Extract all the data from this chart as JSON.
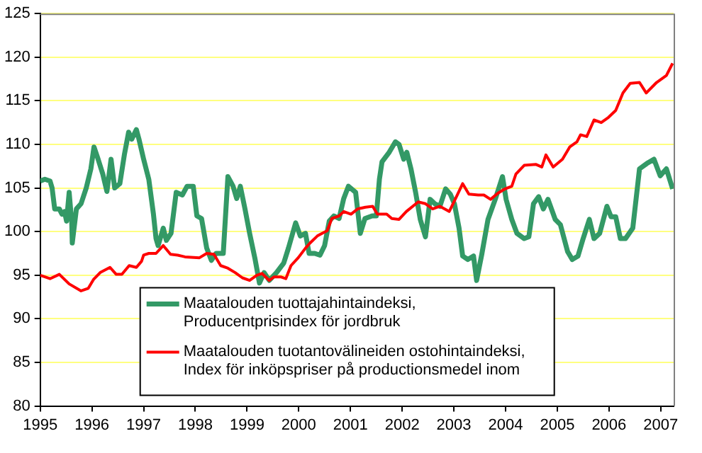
{
  "chart_data": {
    "type": "line",
    "xlim": [
      1995,
      2007.25
    ],
    "xticks": [
      1995,
      1996,
      1997,
      1998,
      1999,
      2000,
      2001,
      2002,
      2003,
      2004,
      2005,
      2006,
      2007
    ],
    "ylim": [
      80,
      125
    ],
    "yticks": [
      80,
      85,
      90,
      95,
      100,
      105,
      110,
      115,
      120,
      125
    ],
    "grid": "y",
    "legend": "bottom",
    "marker": "none",
    "line_style": "solid",
    "series": [
      {
        "name": "Maatalouden tuottajahintaindeksi,  Producentprisindex för jordbruk",
        "color": "#339966",
        "x": [
          1995,
          1995.09,
          1995.19,
          1995.23,
          1995.28,
          1995.37,
          1995.42,
          1995.47,
          1995.51,
          1995.56,
          1995.61,
          1995.62,
          1995.7,
          1995.79,
          1995.89,
          1995.98,
          1996.04,
          1996.12,
          1996.21,
          1996.29,
          1996.37,
          1996.44,
          1996.54,
          1996.63,
          1996.71,
          1996.77,
          1996.86,
          1996.91,
          1997.0,
          1997.1,
          1997.19,
          1997.24,
          1997.28,
          1997.38,
          1997.44,
          1997.53,
          1997.63,
          1997.75,
          1997.84,
          1997.96,
          1998.03,
          1998.12,
          1998.22,
          1998.31,
          1998.4,
          1998.54,
          1998.63,
          1998.73,
          1998.8,
          1998.87,
          1998.96,
          1999.05,
          1999.15,
          1999.24,
          1999.33,
          1999.43,
          1999.57,
          1999.71,
          1999.8,
          1999.94,
          2000.03,
          2000.13,
          2000.2,
          2000.31,
          2000.41,
          2000.5,
          2000.59,
          2000.68,
          2000.78,
          2000.87,
          2000.96,
          2001.1,
          2001.19,
          2001.28,
          2001.42,
          2001.5,
          2001.56,
          2001.61,
          2001.75,
          2001.87,
          2001.94,
          2002.03,
          2002.09,
          2002.17,
          2002.26,
          2002.35,
          2002.45,
          2002.54,
          2002.63,
          2002.73,
          2002.84,
          2002.93,
          2003.01,
          2003.1,
          2003.17,
          2003.27,
          2003.38,
          2003.44,
          2003.54,
          2003.66,
          2003.8,
          2003.94,
          2004.01,
          2004.12,
          2004.22,
          2004.36,
          2004.45,
          2004.54,
          2004.64,
          2004.73,
          2004.82,
          2004.96,
          2005.06,
          2005.2,
          2005.29,
          2005.4,
          2005.5,
          2005.62,
          2005.71,
          2005.82,
          2005.96,
          2006.04,
          2006.13,
          2006.22,
          2006.32,
          2006.46,
          2006.59,
          2006.73,
          2006.87,
          2006.99,
          2007.11,
          2007.23
        ],
        "values": [
          105.8,
          106,
          105.8,
          105,
          102.6,
          102.6,
          102,
          102.3,
          101.2,
          104.5,
          101,
          98.7,
          102.6,
          103.2,
          105,
          107.2,
          109.7,
          108.3,
          106.6,
          104.6,
          108.3,
          105,
          105.5,
          108.9,
          111.4,
          110.6,
          111.7,
          110.6,
          108.3,
          106,
          102,
          99.2,
          98.4,
          100.4,
          99,
          99.8,
          104.5,
          104.2,
          105.2,
          105.2,
          101.8,
          101.5,
          98.1,
          96.7,
          97.5,
          97.5,
          106.3,
          105.2,
          103.8,
          105.2,
          102.6,
          99.8,
          97,
          94.1,
          95.3,
          94.4,
          95.3,
          96.4,
          98.1,
          101,
          99.5,
          99.8,
          97.5,
          97.5,
          97.3,
          98.4,
          101.2,
          101.8,
          101.5,
          103.8,
          105.2,
          104.5,
          99.8,
          101.5,
          101.8,
          101.8,
          106,
          108,
          109.1,
          110.3,
          110,
          108.3,
          109.1,
          107.2,
          104.5,
          101.4,
          99.4,
          103.7,
          103.2,
          102.9,
          104.9,
          104.3,
          103.2,
          100.4,
          97.2,
          96.8,
          97.2,
          94.4,
          97.4,
          101.4,
          103.7,
          106.3,
          103.7,
          101.4,
          99.8,
          99.2,
          99.4,
          103.2,
          104,
          102.6,
          103.7,
          101.4,
          100.8,
          97.7,
          96.8,
          97.2,
          99.2,
          101.4,
          99.2,
          99.8,
          102.9,
          101.7,
          101.7,
          99.2,
          99.2,
          100.4,
          107.2,
          107.8,
          108.3,
          106.4,
          107.2,
          104.9
        ]
      },
      {
        "name": "Maatalouden tuotantovälineiden ostohintaindeksi, Index för inköpspriser på productionsmedel inom",
        "color": "#ff0000",
        "x": [
          1995,
          1995.19,
          1995.37,
          1995.56,
          1995.79,
          1995.93,
          1996.03,
          1996.16,
          1996.35,
          1996.47,
          1996.58,
          1996.72,
          1996.86,
          1996.96,
          1997.0,
          1997.1,
          1997.24,
          1997.38,
          1997.52,
          1997.66,
          1997.8,
          1998.08,
          1998.22,
          1998.36,
          1998.49,
          1998.63,
          1998.77,
          1998.91,
          1999.05,
          1999.19,
          1999.29,
          1999.43,
          1999.52,
          1999.66,
          1999.75,
          1999.85,
          1999.99,
          2000.13,
          2000.22,
          2000.36,
          2000.45,
          2000.55,
          2000.64,
          2000.78,
          2000.87,
          2001.01,
          2001.14,
          2001.29,
          2001.43,
          2001.52,
          2001.7,
          2001.8,
          2001.94,
          2002.08,
          2002.31,
          2002.45,
          2002.59,
          2002.73,
          2002.91,
          2003.05,
          2003.17,
          2003.29,
          2003.47,
          2003.58,
          2003.71,
          2003.85,
          2003.99,
          2004.12,
          2004.2,
          2004.36,
          2004.59,
          2004.7,
          2004.78,
          2004.92,
          2005.1,
          2005.24,
          2005.38,
          2005.45,
          2005.57,
          2005.71,
          2005.85,
          2005.99,
          2006.13,
          2006.27,
          2006.41,
          2006.59,
          2006.72,
          2006.92,
          2007.11,
          2007.23
        ],
        "values": [
          95,
          94.6,
          95.1,
          94,
          93.2,
          93.5,
          94.5,
          95.3,
          95.9,
          95.1,
          95.1,
          96.1,
          95.9,
          96.6,
          97.3,
          97.5,
          97.5,
          98.4,
          97.4,
          97.3,
          97.1,
          97,
          97.5,
          97.4,
          96.1,
          95.8,
          95.3,
          94.7,
          94.4,
          95,
          95.2,
          94.4,
          94.8,
          94.8,
          94.6,
          96.1,
          97,
          98.1,
          98.7,
          99.5,
          99.8,
          100.1,
          101.5,
          101.8,
          102.3,
          102,
          102.6,
          102.8,
          102.9,
          102,
          102,
          101.5,
          101.4,
          102.3,
          103.4,
          103.2,
          102.6,
          102.9,
          102.3,
          104,
          105.5,
          104.3,
          104.2,
          104.2,
          103.7,
          104.4,
          104.9,
          105.2,
          106.6,
          107.6,
          107.7,
          107.4,
          108.8,
          107.4,
          108.3,
          109.7,
          110.3,
          111.1,
          110.9,
          112.8,
          112.5,
          113.1,
          113.9,
          115.9,
          117,
          117.1,
          115.9,
          117.1,
          117.9,
          119.3
        ]
      }
    ]
  }
}
